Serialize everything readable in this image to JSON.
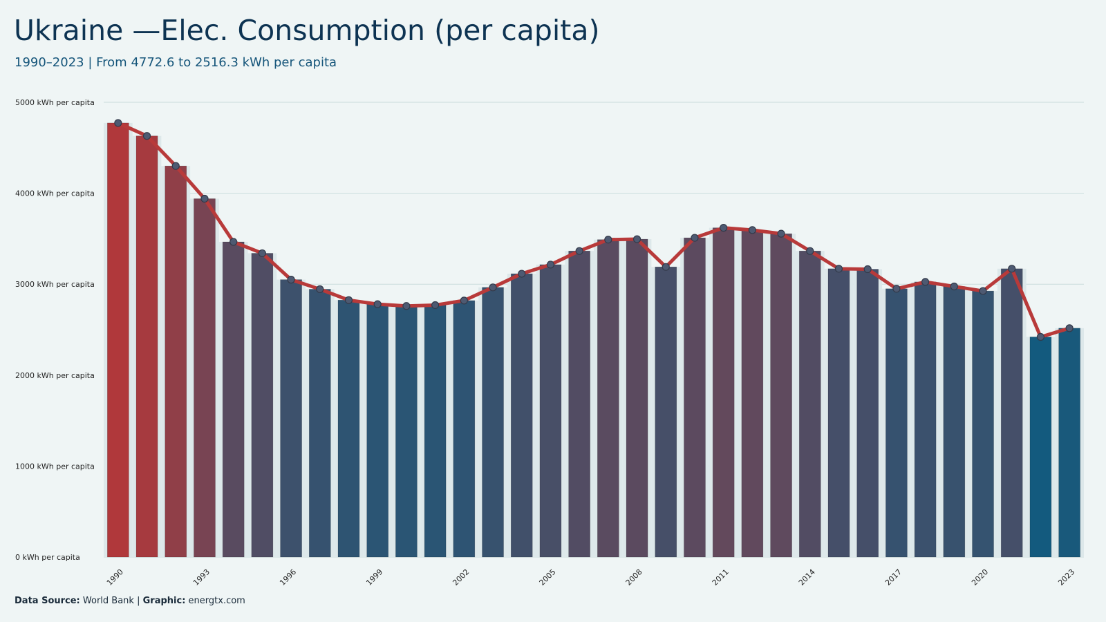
{
  "title": "Ukraine —Elec. Consumption (per capita)",
  "subtitle": "1990–2023 | From 4772.6 to 2516.3 kWh per capita",
  "footer": {
    "source_label": "Data Source:",
    "source_value": "World Bank",
    "separator": "|",
    "graphic_label": "Graphic:",
    "graphic_value": "energtx.com"
  },
  "colors": {
    "background": "#eff5f5",
    "title": "#0d3352",
    "subtitle": "#15557a",
    "line": "#b83a3a",
    "marker_fill": "#4e5a72",
    "marker_stroke": "#333a4a",
    "bar_low": "#135a7e",
    "bar_high": "#b0383b",
    "gridline": "#c9dcdc",
    "plot_band": "#dde8ea"
  },
  "chart_data": {
    "type": "bar",
    "overlay": "line",
    "x": [
      1990,
      1991,
      1992,
      1993,
      1994,
      1995,
      1996,
      1997,
      1998,
      1999,
      2000,
      2001,
      2002,
      2003,
      2004,
      2005,
      2006,
      2007,
      2008,
      2009,
      2010,
      2011,
      2012,
      2013,
      2014,
      2015,
      2016,
      2017,
      2018,
      2019,
      2020,
      2021,
      2022,
      2023
    ],
    "values": [
      4772.6,
      4630,
      4300,
      3940,
      3465,
      3340,
      3050,
      2945,
      2825,
      2780,
      2760,
      2770,
      2820,
      2965,
      3115,
      3215,
      3365,
      3490,
      3495,
      3190,
      3510,
      3620,
      3595,
      3555,
      3365,
      3170,
      3165,
      2950,
      3025,
      2975,
      2925,
      3170,
      2420,
      2516.3
    ],
    "unit": "kWh per capita",
    "ylim": [
      0,
      5000
    ],
    "yticks": [
      0,
      1000,
      2000,
      3000,
      4000,
      5000
    ],
    "ytick_labels": [
      "0 kWh per capita",
      "1000 kWh per capita",
      "2000 kWh per capita",
      "3000 kWh per capita",
      "4000 kWh per capita",
      "5000 kWh per capita"
    ],
    "xtick_labels": [
      "1990",
      "1993",
      "1996",
      "1999",
      "2002",
      "2005",
      "2008",
      "2011",
      "2014",
      "2017",
      "2020",
      "2023"
    ],
    "grid": "horizontal",
    "legend": "none"
  }
}
